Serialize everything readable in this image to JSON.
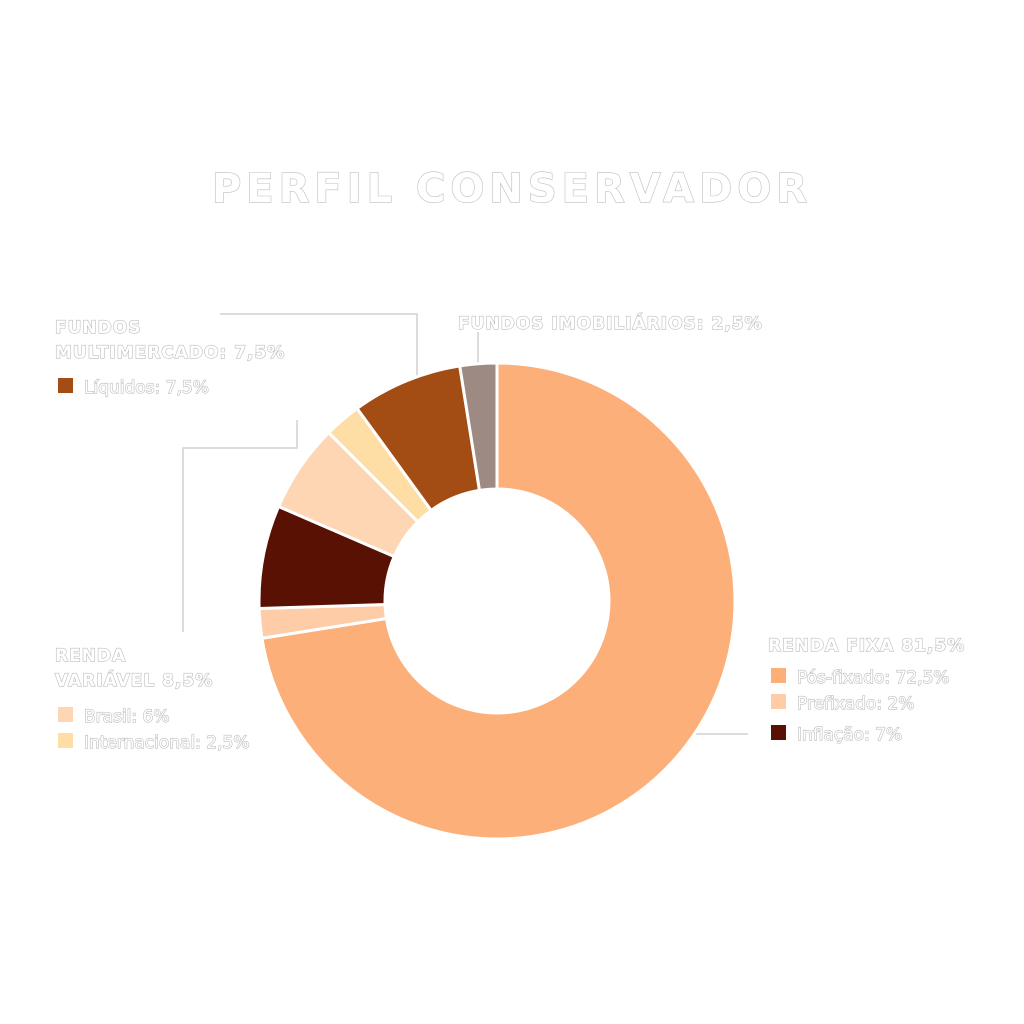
{
  "chart_data": {
    "type": "pie",
    "title": "PERFIL CONSERVADOR",
    "groups": [
      {
        "label": "RENDA FIXA 81,5%",
        "items": [
          {
            "name": "Pós-fixado: 72,5%",
            "value": 72.5,
            "color": "#FCAF79"
          },
          {
            "name": "Prefixado: 2%",
            "value": 2,
            "color": "#FECDA8"
          },
          {
            "name": "Inflação: 7%",
            "value": 7,
            "color": "#581102"
          }
        ]
      },
      {
        "label": "RENDA VARIÁVEL 8,5%",
        "items": [
          {
            "name": "Brasil: 6%",
            "value": 6,
            "color": "#FFD6B4"
          },
          {
            "name": "Internacional: 2,5%",
            "value": 2.5,
            "color": "#FFDEA6"
          }
        ]
      },
      {
        "label": "FUNDOS MULTIMERCADO: 7,5%",
        "items": [
          {
            "name": "Líquidos: 7,5%",
            "value": 7.5,
            "color": "#A34D14"
          }
        ]
      },
      {
        "label": "FUNDOS IMOBILIÁRIOS: 2,5%",
        "items": [
          {
            "name": "",
            "value": 2.5,
            "color": "#9C8A83"
          }
        ]
      }
    ]
  }
}
